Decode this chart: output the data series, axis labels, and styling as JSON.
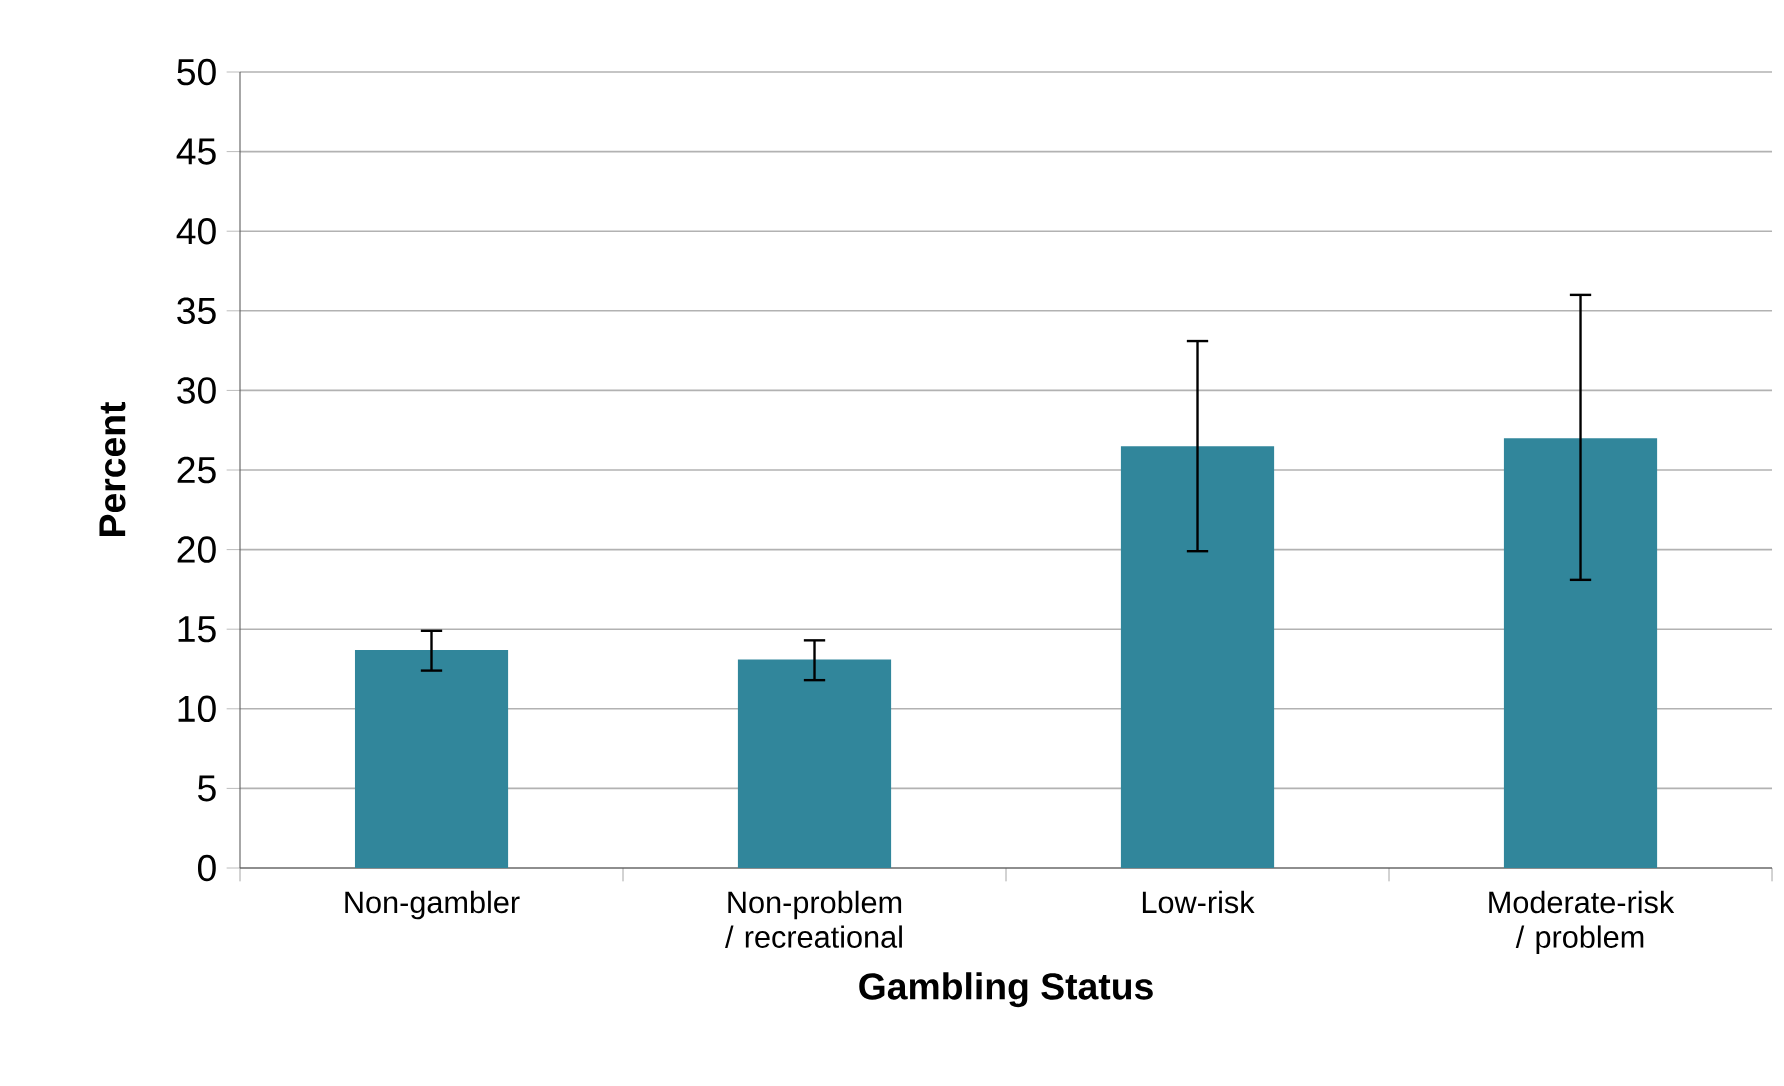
{
  "chart_data": {
    "type": "bar",
    "xlabel": "Gambling Status",
    "ylabel": "Percent",
    "categories": [
      "Non-gambler",
      "Non-problem / recreational",
      "Low-risk",
      "Moderate-risk / problem"
    ],
    "values": [
      13.7,
      13.1,
      26.5,
      27.0
    ],
    "errors": [
      [
        12.4,
        14.9
      ],
      [
        11.8,
        14.3
      ],
      [
        19.9,
        33.1
      ],
      [
        18.1,
        36.0
      ]
    ],
    "color": "#31869b",
    "ylim": [
      0,
      50
    ],
    "yticks": [
      0,
      5,
      10,
      15,
      20,
      25,
      30,
      35,
      40,
      45,
      50
    ],
    "grid": "y"
  }
}
